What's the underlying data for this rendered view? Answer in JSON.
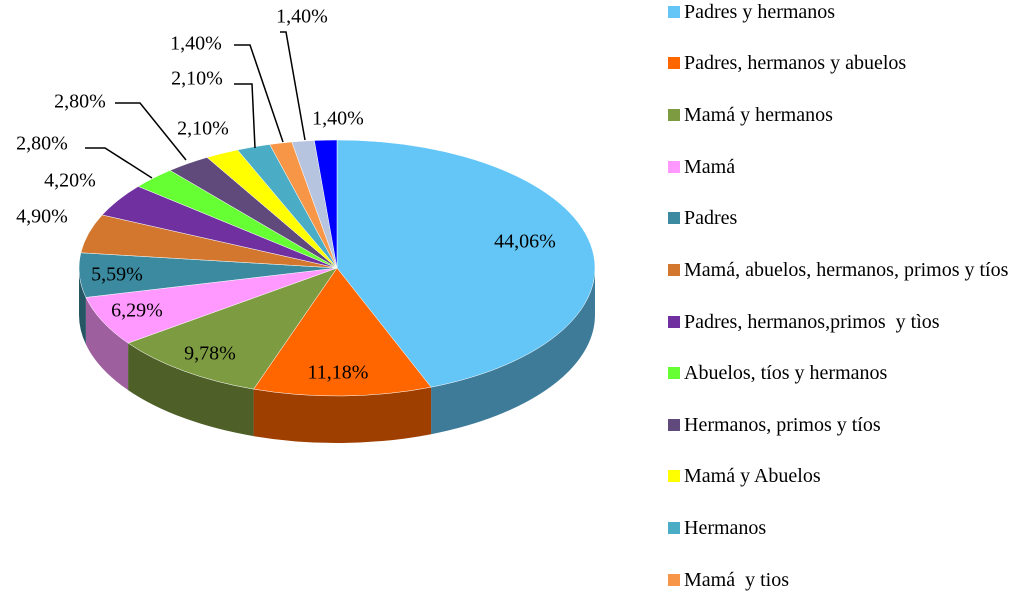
{
  "chart_data": {
    "type": "pie",
    "categories": [
      "Padres y hermanos",
      "Padres, hermanos y abuelos",
      "Mamá y hermanos",
      "Mamá",
      "Padres",
      "Mamá, abuelos, hermanos, primos y tíos",
      "Padres, hermanos,primos  y tìos",
      "Abuelos, tíos y hermanos",
      "Hermanos, primos y tíos",
      "Mamá y Abuelos",
      "Hermanos",
      "Mamá  y tios",
      null,
      null
    ],
    "values": [
      44.06,
      11.18,
      9.78,
      6.29,
      5.59,
      4.9,
      4.2,
      2.8,
      2.8,
      2.1,
      2.1,
      1.4,
      1.4,
      1.4
    ],
    "value_labels": [
      "44,06%",
      "11,18%",
      "9,78%",
      "6,29%",
      "5,59%",
      "4,90%",
      "4,20%",
      "2,80%",
      "2,80%",
      "2,10%",
      "2,10%",
      "1,40%",
      "1,40%",
      "1,40%"
    ],
    "colors": [
      "#63c6f7",
      "#ff6600",
      "#7d9b41",
      "#ff99ff",
      "#3b8aa0",
      "#d2772d",
      "#7030a0",
      "#66ff33",
      "#604a7b",
      "#ffff00",
      "#4bacc6",
      "#f79646",
      "#b7c4e0",
      "#0000ff"
    ]
  }
}
